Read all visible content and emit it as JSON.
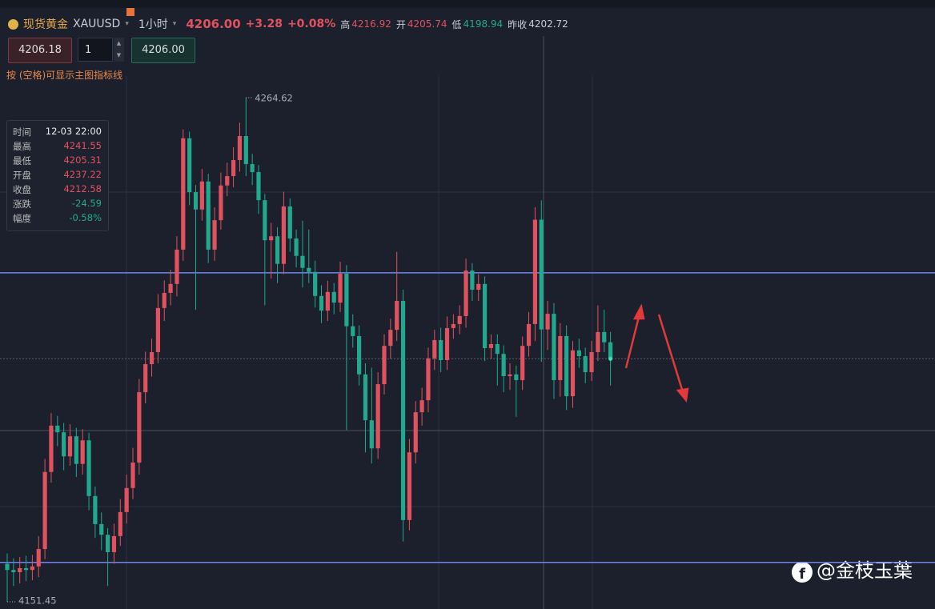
{
  "header": {
    "name": "现货黄金",
    "symbol": "XAUUSD",
    "period": "1小时",
    "price": "4206.00",
    "change": "+3.28",
    "change_pct": "+0.08%",
    "high_label": "高",
    "high": "4216.92",
    "open_label": "开",
    "open": "4205.74",
    "low_label": "低",
    "low": "4198.94",
    "prev_label": "昨收",
    "prev": "4202.72"
  },
  "order": {
    "sell": "4206.18",
    "qty": "1",
    "buy": "4206.00"
  },
  "hint": "按 (空格)可显示主图指标线",
  "info": {
    "time_label": "时间",
    "time": "12-03 22:00",
    "high_label": "最高",
    "low_label": "最低",
    "open_label": "开盘",
    "close_label": "收盘",
    "chg_label": "涨跌",
    "chg": "-24.59",
    "amp_label": "幅度",
    "amp": "-0.58%"
  },
  "watermark": "@金枝玉葉",
  "chart_data": {
    "type": "candlestick",
    "up_color": "#e0525f",
    "down_color": "#22a88f",
    "level_color": "#6f86e8",
    "ylim": [
      4149.84,
      4286.53
    ],
    "levels": [
      4225.3,
      4160.3
    ],
    "ohlc": [
      [
        4160.0,
        4162.3,
        4151.45,
        4158.6
      ],
      [
        4158.6,
        4161.2,
        4155.0,
        4158.1
      ],
      [
        4158.1,
        4161.5,
        4155.6,
        4159.0
      ],
      [
        4159.0,
        4161.8,
        4156.1,
        4158.6
      ],
      [
        4158.6,
        4162.0,
        4156.3,
        4159.4
      ],
      [
        4159.4,
        4166.2,
        4157.0,
        4163.3
      ],
      [
        4163.3,
        4183.5,
        4161.0,
        4180.6
      ],
      [
        4180.6,
        4193.8,
        4178.2,
        4191.0
      ],
      [
        4191.0,
        4193.2,
        4186.4,
        4189.5
      ],
      [
        4189.5,
        4191.6,
        4181.0,
        4184.1
      ],
      [
        4184.1,
        4191.3,
        4182.0,
        4188.6
      ],
      [
        4188.6,
        4190.5,
        4179.5,
        4182.4
      ],
      [
        4182.4,
        4190.2,
        4180.0,
        4187.7
      ],
      [
        4187.7,
        4189.4,
        4172.0,
        4175.2
      ],
      [
        4175.2,
        4177.3,
        4165.8,
        4168.9
      ],
      [
        4168.9,
        4171.5,
        4163.0,
        4166.5
      ],
      [
        4166.5,
        4168.0,
        4155.0,
        4162.6
      ],
      [
        4162.6,
        4169.0,
        4160.0,
        4166.2
      ],
      [
        4166.2,
        4174.5,
        4164.0,
        4171.6
      ],
      [
        4171.6,
        4180.0,
        4169.0,
        4177.0
      ],
      [
        4177.0,
        4186.0,
        4174.5,
        4182.7
      ],
      [
        4182.7,
        4201.5,
        4180.0,
        4198.5
      ],
      [
        4198.5,
        4207.6,
        4196.0,
        4204.8
      ],
      [
        4204.8,
        4210.5,
        4202.0,
        4207.5
      ],
      [
        4207.5,
        4220.5,
        4205.0,
        4217.4
      ],
      [
        4217.4,
        4223.6,
        4214.5,
        4220.8
      ],
      [
        4220.8,
        4226.0,
        4218.0,
        4222.8
      ],
      [
        4222.8,
        4233.5,
        4220.0,
        4230.5
      ],
      [
        4230.5,
        4257.5,
        4228.0,
        4255.5
      ],
      [
        4255.5,
        4257.0,
        4240.5,
        4243.4
      ],
      [
        4243.4,
        4245.0,
        4217.0,
        4239.5
      ],
      [
        4239.5,
        4248.6,
        4237.0,
        4245.8
      ],
      [
        4245.8,
        4247.5,
        4227.5,
        4230.5
      ],
      [
        4230.5,
        4240.0,
        4228.0,
        4237.1
      ],
      [
        4237.1,
        4247.8,
        4235.0,
        4244.9
      ],
      [
        4244.9,
        4250.0,
        4242.5,
        4247.0
      ],
      [
        4247.0,
        4253.5,
        4244.5,
        4250.6
      ],
      [
        4250.6,
        4259.0,
        4248.0,
        4256.0
      ],
      [
        4256.0,
        4264.62,
        4247.0,
        4249.7
      ],
      [
        4249.7,
        4252.0,
        4245.0,
        4247.9
      ],
      [
        4247.9,
        4249.5,
        4238.5,
        4241.6
      ],
      [
        4241.6,
        4243.0,
        4218.0,
        4232.6
      ],
      [
        4232.6,
        4236.5,
        4224.0,
        4233.5
      ],
      [
        4233.5,
        4235.5,
        4223.0,
        4227.3
      ],
      [
        4227.3,
        4243.5,
        4225.0,
        4240.2
      ],
      [
        4240.2,
        4242.0,
        4230.0,
        4233.0
      ],
      [
        4233.0,
        4235.0,
        4226.5,
        4229.1
      ],
      [
        4229.1,
        4237.0,
        4222.0,
        4226.4
      ],
      [
        4226.4,
        4235.0,
        4223.0,
        4225.5
      ],
      [
        4225.5,
        4228.0,
        4217.5,
        4220.1
      ],
      [
        4220.1,
        4222.5,
        4214.0,
        4216.8
      ],
      [
        4216.8,
        4223.5,
        4214.5,
        4221.0
      ],
      [
        4221.0,
        4223.0,
        4216.0,
        4218.6
      ],
      [
        4218.6,
        4227.8,
        4216.5,
        4225.1
      ],
      [
        4225.1,
        4227.0,
        4190.0,
        4213.3
      ],
      [
        4213.3,
        4216.0,
        4208.5,
        4211.1
      ],
      [
        4211.1,
        4213.5,
        4200.0,
        4202.5
      ],
      [
        4202.5,
        4205.0,
        4185.0,
        4192.2
      ],
      [
        4192.2,
        4204.0,
        4182.5,
        4185.9
      ],
      [
        4185.9,
        4203.0,
        4183.5,
        4200.3
      ],
      [
        4200.3,
        4211.5,
        4198.0,
        4208.9
      ],
      [
        4208.9,
        4215.0,
        4206.0,
        4212.5
      ],
      [
        4212.5,
        4230.0,
        4210.0,
        4219.0
      ],
      [
        4219.0,
        4221.5,
        4165.0,
        4169.8
      ],
      [
        4169.8,
        4188.0,
        4167.5,
        4185.0
      ],
      [
        4185.0,
        4196.5,
        4182.5,
        4194.0
      ],
      [
        4194.0,
        4199.5,
        4191.0,
        4196.7
      ],
      [
        4196.7,
        4208.5,
        4194.0,
        4206.1
      ],
      [
        4206.1,
        4212.5,
        4203.5,
        4210.2
      ],
      [
        4210.2,
        4213.0,
        4203.0,
        4205.7
      ],
      [
        4205.7,
        4215.5,
        4203.5,
        4212.9
      ],
      [
        4212.9,
        4216.0,
        4210.5,
        4213.8
      ],
      [
        4213.8,
        4218.0,
        4211.5,
        4215.6
      ],
      [
        4215.6,
        4228.5,
        4213.0,
        4225.8
      ],
      [
        4225.8,
        4227.5,
        4219.0,
        4221.5
      ],
      [
        4221.5,
        4225.0,
        4219.0,
        4222.8
      ],
      [
        4222.8,
        4224.5,
        4205.5,
        4208.4
      ],
      [
        4208.4,
        4211.5,
        4206.0,
        4209.3
      ],
      [
        4209.3,
        4211.5,
        4200.0,
        4207.1
      ],
      [
        4207.1,
        4209.0,
        4198.5,
        4202.1
      ],
      [
        4202.1,
        4205.0,
        4199.0,
        4202.5
      ],
      [
        4202.5,
        4204.5,
        4193.0,
        4201.2
      ],
      [
        4201.2,
        4211.0,
        4199.0,
        4208.9
      ],
      [
        4208.9,
        4216.5,
        4206.5,
        4213.8
      ],
      [
        4213.8,
        4240.0,
        4210.0,
        4237.22
      ],
      [
        4237.22,
        4241.55,
        4205.31,
        4212.58
      ],
      [
        4212.58,
        4219.0,
        4208.0,
        4216.1
      ],
      [
        4216.1,
        4218.5,
        4197.0,
        4201.2
      ],
      [
        4201.2,
        4214.0,
        4197.5,
        4211.1
      ],
      [
        4211.1,
        4213.5,
        4194.5,
        4197.6
      ],
      [
        4197.6,
        4210.0,
        4195.0,
        4207.9
      ],
      [
        4207.9,
        4210.5,
        4204.0,
        4206.6
      ],
      [
        4206.6,
        4208.5,
        4200.5,
        4203.0
      ],
      [
        4203.0,
        4210.0,
        4201.0,
        4207.5
      ],
      [
        4207.5,
        4218.0,
        4205.5,
        4212.0
      ],
      [
        4212.0,
        4217.0,
        4207.5,
        4209.7
      ],
      [
        4209.7,
        4212.0,
        4200.0,
        4206.0
      ]
    ]
  }
}
